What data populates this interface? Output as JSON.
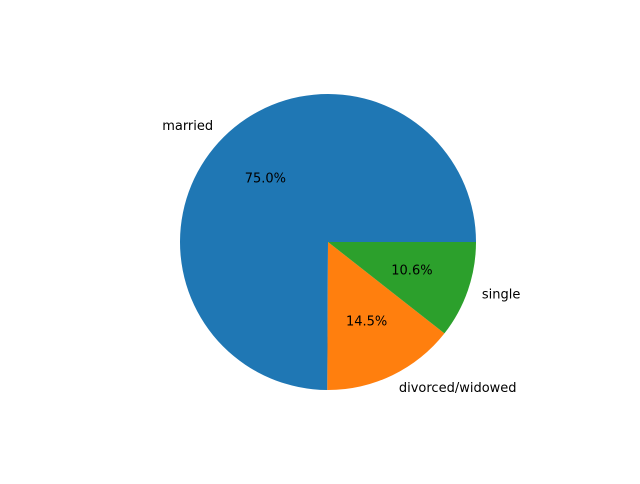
{
  "chart_data": {
    "type": "pie",
    "title": "",
    "slices": [
      {
        "label": "married",
        "value": 75.0,
        "pct_label": "75.0%",
        "color": "#1f77b4"
      },
      {
        "label": "divorced/widowed",
        "value": 14.5,
        "pct_label": "14.5%",
        "color": "#ff7f0e"
      },
      {
        "label": "single",
        "value": 10.6,
        "pct_label": "10.6%",
        "color": "#2ca02c"
      }
    ],
    "start_angle_deg": 0,
    "direction": "counterclockwise",
    "legend": "none"
  }
}
